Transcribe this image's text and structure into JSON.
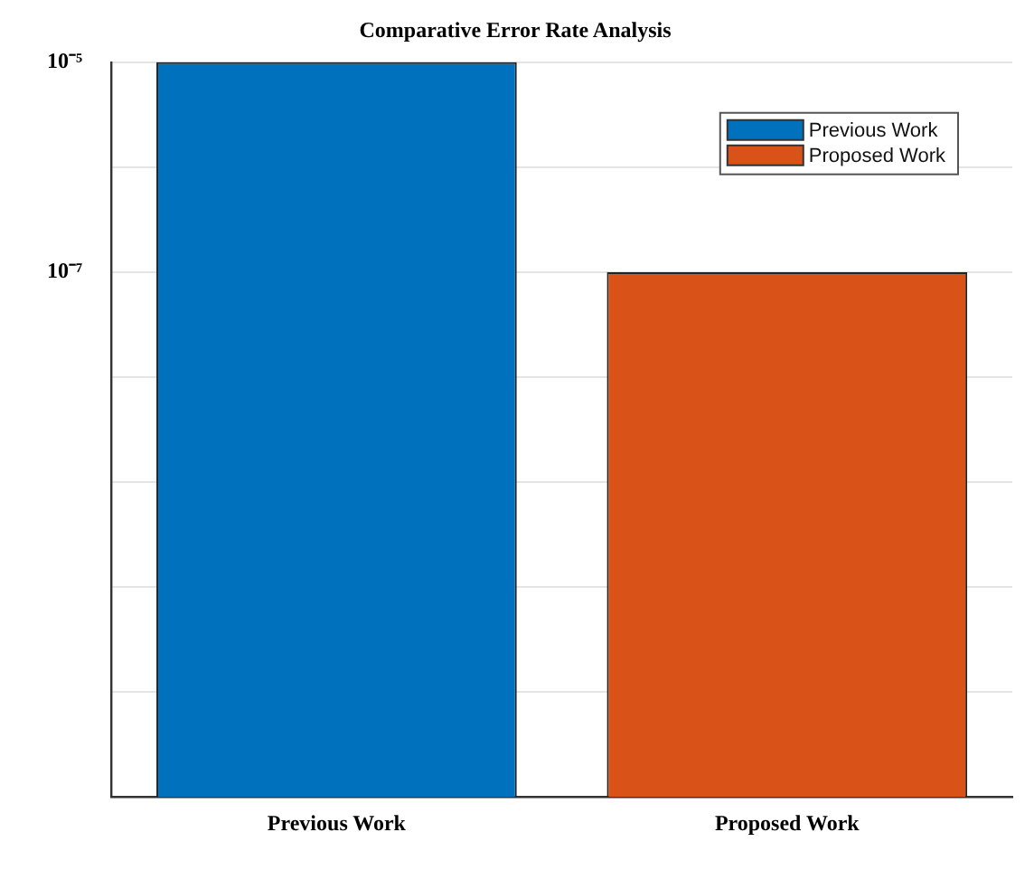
{
  "chart_data": {
    "type": "bar",
    "title": "Comparative Error Rate Analysis",
    "categories": [
      "Previous Work",
      "Proposed Work"
    ],
    "series": [
      {
        "name": "Previous Work",
        "color": "#0072bd",
        "values": [
          1e-05,
          null
        ]
      },
      {
        "name": "Proposed Work",
        "color": "#d95319",
        "values": [
          null,
          1e-07
        ]
      }
    ],
    "log": true,
    "ylim": [
      1e-12,
      1e-05
    ],
    "yticks": [
      {
        "value": 1e-12,
        "label": null
      },
      {
        "value": 1e-11,
        "label": null
      },
      {
        "value": 1e-10,
        "label": null
      },
      {
        "value": 1e-09,
        "label": null
      },
      {
        "value": 1e-08,
        "label": null
      },
      {
        "value": 1e-07,
        "label": "10⁻⁷"
      },
      {
        "value": 1e-06,
        "label": null
      },
      {
        "value": 1e-05,
        "label": "10⁻⁵"
      }
    ],
    "grid": "y",
    "legend": "top right"
  }
}
